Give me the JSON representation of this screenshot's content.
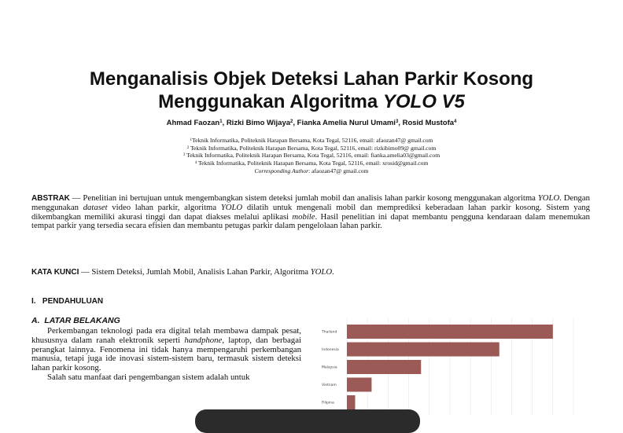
{
  "paper": {
    "title_line1": "Menganalisis Objek Deteksi Lahan Parkir Kosong",
    "title_line2_prefix": "Menggunakan Algoritma ",
    "title_line2_italic": "YOLO V5",
    "authors": [
      {
        "name": "Ahmad Faozan",
        "sup": "1",
        "sep": ", "
      },
      {
        "name": "Rizki Bimo Wijaya",
        "sup": "2",
        "sep": ", "
      },
      {
        "name": "Fianka Amelia Nurul Umami",
        "sup": "3",
        "sep": ", "
      },
      {
        "name": "Rosid Mustofa",
        "sup": "4",
        "sep": ""
      }
    ],
    "affiliations": [
      {
        "sup": "1",
        "text": "Teknik Informatika, Politeknik Harapan Bersama, Kota Tegal, 52116, email: afaozan47@ gmail.com"
      },
      {
        "sup": "2",
        "text": " Teknik Informatika, Politeknik Harapan Bersama, Kota Tegal, 52116, email: rizkibimo09@ gmail.com"
      },
      {
        "sup": "3",
        "text": " Teknik Informatika, Politeknik Harapan Bersama, Kota Tegal, 52116, email: fianka.amelia03@gmail.com"
      },
      {
        "sup": "4",
        "text": " Teknik Informatika, Politeknik Harapan Bersama, Kota Tegal, 52116, email: xrosid@gmail.com"
      }
    ],
    "corresponding_label": "Corresponding Author",
    "corresponding_value": ": afaozan47@ gmail.com"
  },
  "abstract": {
    "label": "ABSTRAK",
    "dash": " — ",
    "t1": "Penelitian ini bertujuan untuk mengembangkan sistem deteksi jumlah mobil dan analisis lahan parkir kosong menggunakan algoritma ",
    "i1": "YOLO",
    "t2": ". Dengan menggunakan ",
    "i2": "dataset",
    "t3": " video lahan parkir, algoritma ",
    "i3": "YOLO",
    "t4": " dilatih untuk mengenali mobil dan memprediksi keberadaan lahan parkir kosong. Sistem yang dikembangkan memiliki akurasi tinggi dan dapat diakses melalui aplikasi ",
    "i4": "mobile",
    "t5": ". Hasil penelitian ini dapat membantu pengguna kendaraan dalam menemukan tempat parkir yang tersedia secara efisien dan membantu petugas parkir dalam pengelolaan lahan parkir."
  },
  "keywords": {
    "label": "KATA KUNCI",
    "t1": " — Sistem Deteksi, Jumlah Mobil, Analisis Lahan Parkir, Algoritma ",
    "i1": "YOLO",
    "t2": "."
  },
  "section1": {
    "number": "I.",
    "title": "PENDAHULUAN"
  },
  "subsection_a": {
    "number": "A.",
    "title": "LATAR BELAKANG"
  },
  "body": {
    "p1_t1": "Perkembangan teknologi pada era digital telah membawa dampak pesat, khususnya dalam ranah elektronik seperti ",
    "p1_i1": "handphone",
    "p1_t2": ", laptop, dan berbagai perangkat lainnya. Fenomena ini tidak hanya mempengaruhi perkembangan manusia, tetapi juga ide inovasi sistem-sistem baru, termasuk sistem deteksi lahan parkir kosong.",
    "p2_t1": "Salah satu manfaat dari pengembangan sistem adalah untuk"
  },
  "chart_data": {
    "type": "bar",
    "orientation": "horizontal",
    "categories": [
      "Thailand",
      "Indonesia",
      "Malaysia",
      "Vietnam",
      "Filipina"
    ],
    "values": [
      100,
      74,
      36,
      12,
      4
    ],
    "xlim": [
      0,
      110
    ],
    "grid": true,
    "bar_color": "#9b5a55",
    "title": "",
    "xlabel": "",
    "ylabel": ""
  },
  "colors": {
    "text": "#111111",
    "overlay": "#2b2b2b"
  }
}
